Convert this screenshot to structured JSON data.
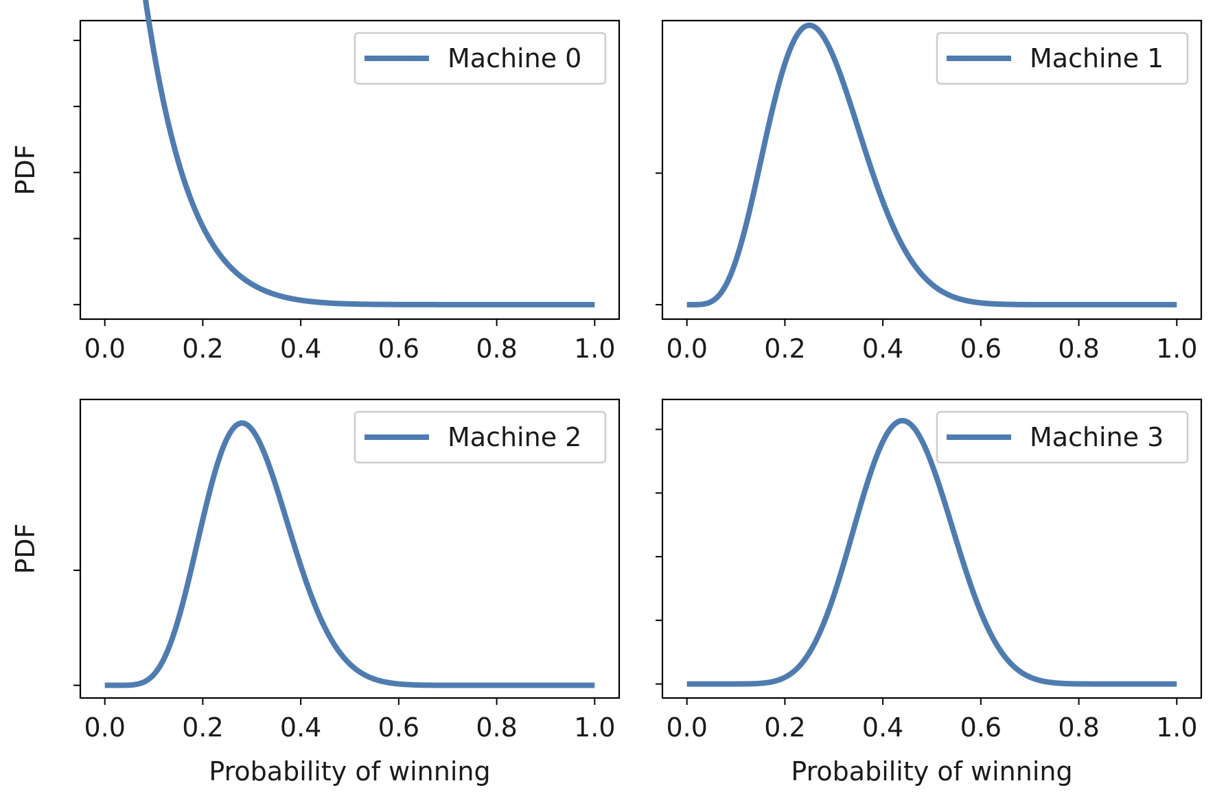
{
  "colors": {
    "line": "#4f7cb0",
    "axes": "#000000",
    "legend_border": "#cccccc"
  },
  "chart_data": [
    {
      "type": "line",
      "xlim": [
        -0.05,
        1.05
      ],
      "ylim": [
        -0.22,
        4.3
      ],
      "xticks": [
        "0.0",
        "0.2",
        "0.4",
        "0.6",
        "0.8",
        "1.0"
      ],
      "ytick_values": [
        0,
        1,
        2,
        3,
        4
      ],
      "ylabel": "PDF",
      "xlabel": "",
      "legend": "upper right",
      "series": [
        {
          "name": "Machine 0",
          "beta": [
            1,
            11
          ]
        }
      ]
    },
    {
      "type": "line",
      "xlim": [
        -0.05,
        1.05
      ],
      "ylim": [
        -0.22,
        4.32
      ],
      "xticks": [
        "0.0",
        "0.2",
        "0.4",
        "0.6",
        "0.8",
        "1.0"
      ],
      "ytick_values": [
        0,
        2
      ],
      "ylabel": "",
      "xlabel": "",
      "legend": "upper right",
      "series": [
        {
          "name": "Machine 1",
          "beta": [
            6,
            16
          ]
        }
      ]
    },
    {
      "type": "line",
      "xlim": [
        -0.05,
        1.05
      ],
      "ylim": [
        -0.22,
        4.97
      ],
      "xticks": [
        "0.0",
        "0.2",
        "0.4",
        "0.6",
        "0.8",
        "1.0"
      ],
      "ytick_values": [
        0,
        2
      ],
      "ylabel": "PDF",
      "xlabel": "Probability of winning",
      "legend": "upper right",
      "series": [
        {
          "name": "Machine 2",
          "beta": [
            8,
            19
          ]
        }
      ]
    },
    {
      "type": "line",
      "xlim": [
        -0.05,
        1.05
      ],
      "ylim": [
        -0.22,
        4.47
      ],
      "xticks": [
        "0.0",
        "0.2",
        "0.4",
        "0.6",
        "0.8",
        "1.0"
      ],
      "ytick_values": [
        0,
        1,
        2,
        3,
        4
      ],
      "ylabel": "",
      "xlabel": "Probability of winning",
      "legend": "upper right",
      "series": [
        {
          "name": "Machine 3",
          "beta": [
            12,
            15
          ]
        }
      ]
    }
  ]
}
